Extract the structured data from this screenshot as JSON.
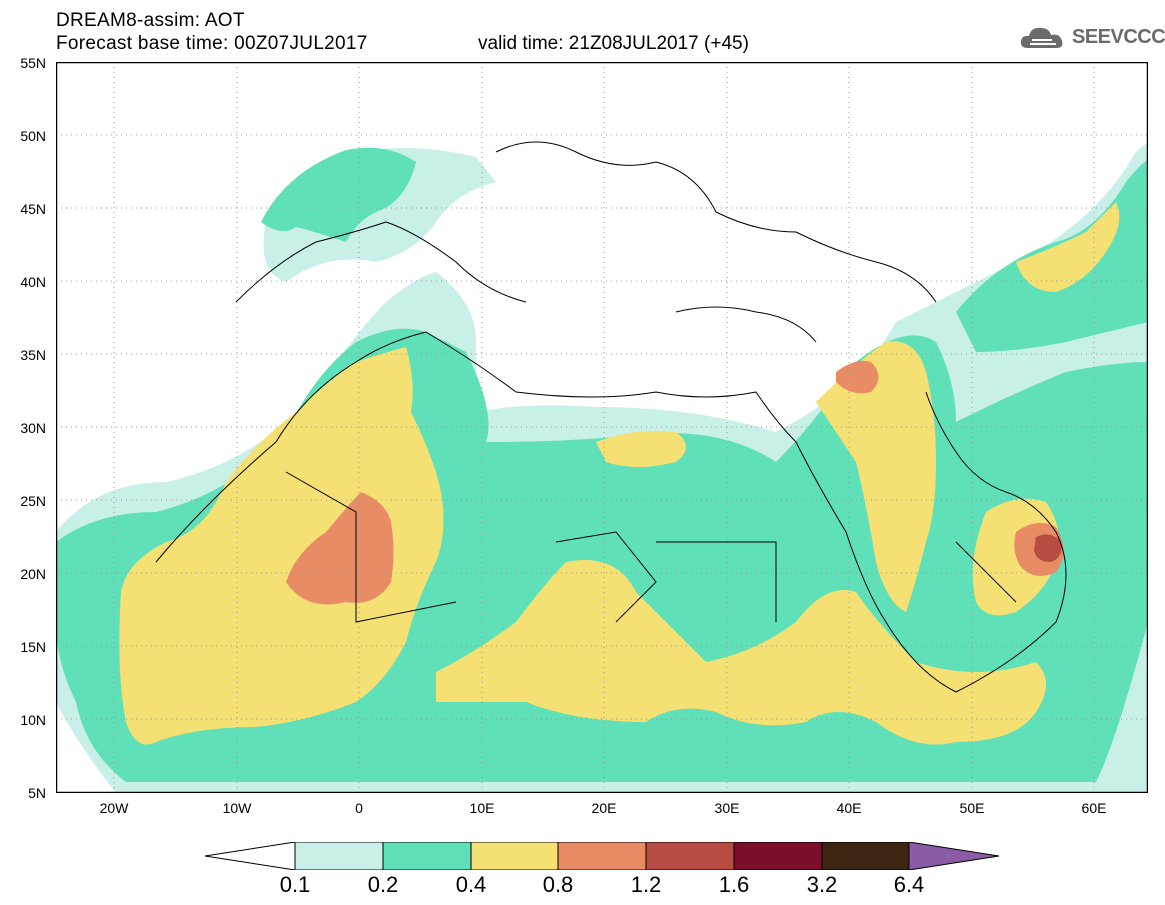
{
  "title": {
    "line1": "DREAM8-assim: AOT",
    "line2": "Forecast base time: 00Z07JUL2017",
    "valid": "valid time: 21Z08JUL2017 (+45)"
  },
  "logo": {
    "text": "SEEVCCC",
    "icon": "cloud-icon"
  },
  "axes": {
    "lat_labels": [
      "55N",
      "50N",
      "45N",
      "40N",
      "35N",
      "30N",
      "25N",
      "20N",
      "15N",
      "10N",
      "5N"
    ],
    "lon_labels": [
      "20W",
      "10W",
      "0",
      "10E",
      "20E",
      "30E",
      "40E",
      "50E",
      "60E"
    ]
  },
  "colorbar": {
    "labels": [
      "0.1",
      "0.2",
      "0.4",
      "0.8",
      "1.2",
      "1.6",
      "3.2",
      "6.4"
    ],
    "colors": [
      "#ffffff",
      "#c8f0e8",
      "#5fe0b8",
      "#f5e173",
      "#e88c66",
      "#b74c43",
      "#7a0f2b",
      "#3d2413",
      "#8b5ca6"
    ]
  }
}
